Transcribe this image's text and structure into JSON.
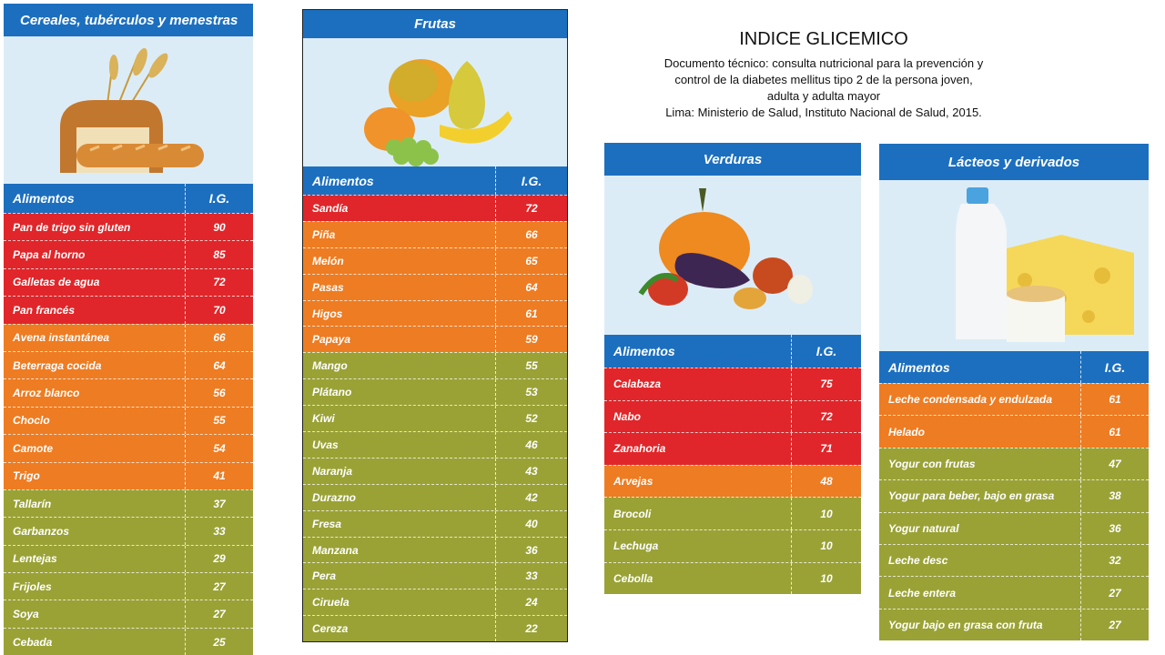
{
  "info": {
    "title": "INDICE GLICEMICO",
    "line1": "Documento técnico: consulta nutricional para la prevención y",
    "line2": "control de la diabetes mellitus tipo 2 de la persona joven,",
    "line3": "adulta y adulta mayor",
    "line4": "Lima: Ministerio de Salud, Instituto Nacional de Salud, 2015."
  },
  "colors": {
    "header": "#1c6fbf",
    "red": "#e0262a",
    "orange": "#ee7c22",
    "olive": "#9aa236"
  },
  "panels": [
    {
      "title": "Cereales, tubérculos y menestras",
      "image": "bread-wheat-illustration",
      "head_food": "Alimentos",
      "head_gi": "I.G.",
      "rows": [
        {
          "food": "Pan de trigo sin gluten",
          "gi": "90",
          "level": "red"
        },
        {
          "food": "Papa al horno",
          "gi": "85",
          "level": "red"
        },
        {
          "food": "Galletas de agua",
          "gi": "72",
          "level": "red"
        },
        {
          "food": "Pan francés",
          "gi": "70",
          "level": "red"
        },
        {
          "food": "Avena instantánea",
          "gi": "66",
          "level": "orange"
        },
        {
          "food": "Beterraga cocida",
          "gi": "64",
          "level": "orange"
        },
        {
          "food": "Arroz blanco",
          "gi": "56",
          "level": "orange"
        },
        {
          "food": "Choclo",
          "gi": "55",
          "level": "orange"
        },
        {
          "food": "Camote",
          "gi": "54",
          "level": "orange"
        },
        {
          "food": "Trigo",
          "gi": "41",
          "level": "orange"
        },
        {
          "food": "Tallarín",
          "gi": "37",
          "level": "olive"
        },
        {
          "food": "Garbanzos",
          "gi": "33",
          "level": "olive"
        },
        {
          "food": "Lentejas",
          "gi": "29",
          "level": "olive"
        },
        {
          "food": "Frijoles",
          "gi": "27",
          "level": "olive"
        },
        {
          "food": "Soya",
          "gi": "27",
          "level": "olive"
        },
        {
          "food": "Cebada",
          "gi": "25",
          "level": "olive"
        }
      ]
    },
    {
      "title": "Frutas",
      "image": "fruits-illustration",
      "head_food": "Alimentos",
      "head_gi": "I.G.",
      "rows": [
        {
          "food": "Sandía",
          "gi": "72",
          "level": "red"
        },
        {
          "food": "Piña",
          "gi": "66",
          "level": "orange"
        },
        {
          "food": "Melón",
          "gi": "65",
          "level": "orange"
        },
        {
          "food": "Pasas",
          "gi": "64",
          "level": "orange"
        },
        {
          "food": "Higos",
          "gi": "61",
          "level": "orange"
        },
        {
          "food": "Papaya",
          "gi": "59",
          "level": "orange"
        },
        {
          "food": "Mango",
          "gi": "55",
          "level": "olive"
        },
        {
          "food": "Plátano",
          "gi": "53",
          "level": "olive"
        },
        {
          "food": "Kiwi",
          "gi": "52",
          "level": "olive"
        },
        {
          "food": "Uvas",
          "gi": "46",
          "level": "olive"
        },
        {
          "food": "Naranja",
          "gi": "43",
          "level": "olive"
        },
        {
          "food": "Durazno",
          "gi": "42",
          "level": "olive"
        },
        {
          "food": "Fresa",
          "gi": "40",
          "level": "olive"
        },
        {
          "food": "Manzana",
          "gi": "36",
          "level": "olive"
        },
        {
          "food": "Pera",
          "gi": "33",
          "level": "olive"
        },
        {
          "food": "Ciruela",
          "gi": "24",
          "level": "olive"
        },
        {
          "food": "Cereza",
          "gi": "22",
          "level": "olive"
        }
      ]
    },
    {
      "title": "Verduras",
      "image": "vegetables-illustration",
      "head_food": "Alimentos",
      "head_gi": "I.G.",
      "rows": [
        {
          "food": "Calabaza",
          "gi": "75",
          "level": "red"
        },
        {
          "food": "Nabo",
          "gi": "72",
          "level": "red"
        },
        {
          "food": "Zanahoria",
          "gi": "71",
          "level": "red"
        },
        {
          "food": "Arvejas",
          "gi": "48",
          "level": "orange"
        },
        {
          "food": "Brocoli",
          "gi": "10",
          "level": "olive"
        },
        {
          "food": "Lechuga",
          "gi": "10",
          "level": "olive"
        },
        {
          "food": "Cebolla",
          "gi": "10",
          "level": "olive"
        }
      ]
    },
    {
      "title": "Lácteos y derivados",
      "image": "dairy-illustration",
      "head_food": "Alimentos",
      "head_gi": "I.G.",
      "rows": [
        {
          "food": "Leche condensada y endulzada",
          "gi": "61",
          "level": "orange"
        },
        {
          "food": "Helado",
          "gi": "61",
          "level": "orange"
        },
        {
          "food": "Yogur con frutas",
          "gi": "47",
          "level": "olive"
        },
        {
          "food": "Yogur para beber, bajo en grasa",
          "gi": "38",
          "level": "olive"
        },
        {
          "food": "Yogur natural",
          "gi": "36",
          "level": "olive"
        },
        {
          "food": "Leche desc",
          "gi": "32",
          "level": "olive"
        },
        {
          "food": "Leche entera",
          "gi": "27",
          "level": "olive"
        },
        {
          "food": "Yogur bajo en grasa con fruta",
          "gi": "27",
          "level": "olive"
        }
      ]
    }
  ]
}
